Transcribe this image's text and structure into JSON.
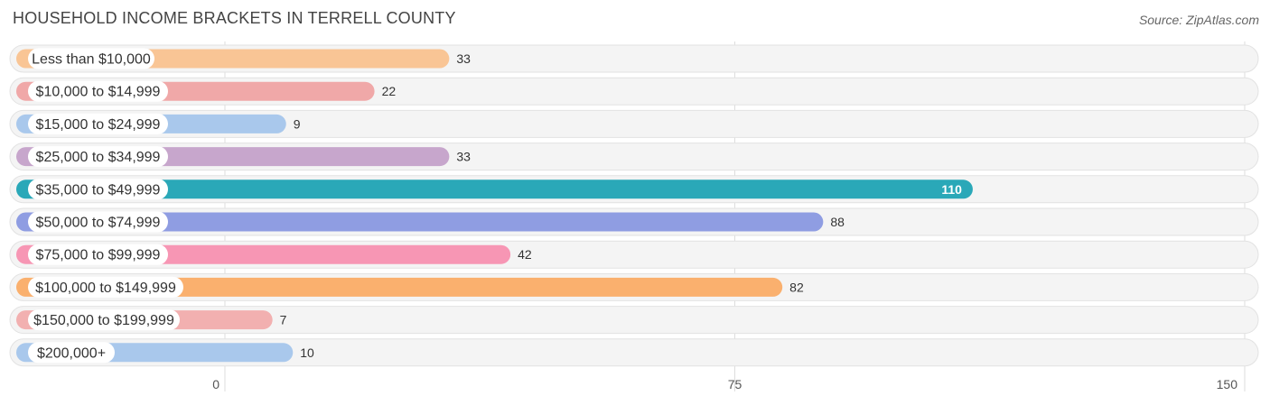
{
  "title": "HOUSEHOLD INCOME BRACKETS IN TERRELL COUNTY",
  "source": "Source: ZipAtlas.com",
  "chart_data": {
    "type": "bar",
    "orientation": "horizontal",
    "categories": [
      "Less than $10,000",
      "$10,000 to $14,999",
      "$15,000 to $24,999",
      "$25,000 to $34,999",
      "$35,000 to $49,999",
      "$50,000 to $74,999",
      "$75,000 to $99,999",
      "$100,000 to $149,999",
      "$150,000 to $199,999",
      "$200,000+"
    ],
    "values": [
      33,
      22,
      9,
      33,
      110,
      88,
      42,
      82,
      7,
      10
    ],
    "colors": [
      "#f9c595",
      "#f0a8a8",
      "#a9c8ec",
      "#c7a6cc",
      "#2aa8b8",
      "#8f9de2",
      "#f796b4",
      "#fab06e",
      "#f2b0b0",
      "#a9c8ec"
    ],
    "xlim": [
      0,
      150
    ],
    "xticks": [
      0,
      75,
      150
    ],
    "grid": true,
    "title": "HOUSEHOLD INCOME BRACKETS IN TERRELL COUNTY",
    "xlabel": "",
    "ylabel": ""
  }
}
